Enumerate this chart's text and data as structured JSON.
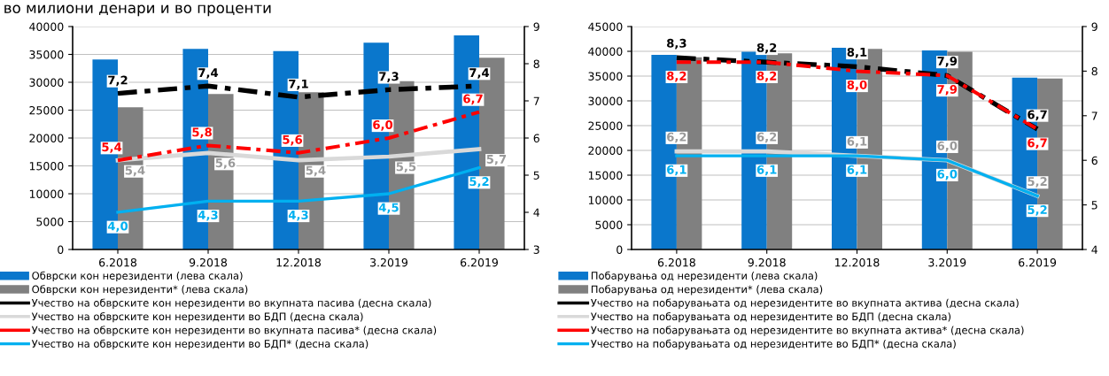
{
  "chart_data": [
    {
      "type": "bar",
      "title": "во милиони денари и во проценти",
      "categories": [
        "6.2018",
        "9.2018",
        "12.2018",
        "3.2019",
        "6.2019"
      ],
      "ylim": [
        0,
        40000
      ],
      "yticks": [
        0,
        5000,
        10000,
        15000,
        20000,
        25000,
        30000,
        35000,
        40000
      ],
      "y2lim": [
        3,
        9
      ],
      "y2ticks": [
        3,
        4,
        5,
        6,
        7,
        8,
        9
      ],
      "grid": "y",
      "legend": "bottom",
      "series": [
        {
          "name": "Обврски кон нерезиденти (лева скала)",
          "color": "#0a77cc",
          "values": [
            34100,
            36000,
            35600,
            37100,
            38400
          ]
        },
        {
          "name": "Обврски кон нерезиденти* (лева скала)",
          "color": "#808080",
          "values": [
            25500,
            27900,
            28200,
            30200,
            34400
          ]
        },
        {
          "name": "Учество на обврските кон нерезиденти во вкупната пасива (десна скала)",
          "type": "line",
          "axis": "y2",
          "color": "#000000",
          "line_style": "dashed",
          "values": [
            7.2,
            7.4,
            7.1,
            7.3,
            7.4
          ],
          "value_labels": [
            "7,2",
            "7,4",
            "7,1",
            "7,3",
            "7,4"
          ]
        },
        {
          "name": "Учество на обврските кон нерезиденти во БДП (десна скала)",
          "type": "line",
          "axis": "y2",
          "color": "#d9d9d9",
          "line_style": "solid",
          "values": [
            5.4,
            5.6,
            5.4,
            5.5,
            5.7
          ],
          "value_labels": [
            "5,4",
            "5,6",
            "5,4",
            "5,5",
            "5,7"
          ]
        },
        {
          "name": "Учество на обврските кон нерезиденти во вкупната пасива* (десна скала)",
          "type": "line",
          "axis": "y2",
          "color": "#ff0000",
          "line_style": "dashed",
          "values": [
            5.4,
            5.8,
            5.6,
            6.0,
            6.7
          ],
          "value_labels": [
            "5,4",
            "5,8",
            "5,6",
            "6,0",
            "6,7"
          ]
        },
        {
          "name": "Учество на обврските кон нерезиденти во БДП* (десна скала)",
          "type": "line",
          "axis": "y2",
          "color": "#00b0f0",
          "line_style": "solid",
          "values": [
            4.0,
            4.3,
            4.3,
            4.5,
            5.2
          ],
          "value_labels": [
            "4,0",
            "4,3",
            "4,3",
            "4,5",
            "5,2"
          ]
        }
      ]
    },
    {
      "type": "bar",
      "categories": [
        "6.2018",
        "9.2018",
        "12.2018",
        "3.2019",
        "6.2019"
      ],
      "ylim": [
        0,
        45000
      ],
      "yticks": [
        0,
        5000,
        10000,
        15000,
        20000,
        25000,
        30000,
        35000,
        40000,
        45000
      ],
      "y2lim": [
        4,
        9
      ],
      "y2ticks": [
        4,
        5,
        6,
        7,
        8,
        9
      ],
      "grid": "y",
      "legend": "bottom",
      "series": [
        {
          "name": "Побарувања од нерезиденти (лева скала)",
          "color": "#0a77cc",
          "values": [
            39300,
            39900,
            40700,
            40200,
            34700
          ]
        },
        {
          "name": "Побарувања од нерезиденти* (лева скала)",
          "color": "#808080",
          "values": [
            38800,
            39600,
            40500,
            39900,
            34500
          ]
        },
        {
          "name": "Учество на побарувањата од нерезидентите во вкупната актива (десна скала)",
          "type": "line",
          "axis": "y2",
          "color": "#000000",
          "line_style": "dashed",
          "values": [
            8.3,
            8.2,
            8.1,
            7.9,
            6.7
          ],
          "value_labels": [
            "8,3",
            "8,2",
            "8,1",
            "7,9",
            "6,7"
          ]
        },
        {
          "name": "Учество на побарувањата од нерезидентите во БДП (десна скала)",
          "type": "line",
          "axis": "y2",
          "color": "#d9d9d9",
          "line_style": "solid",
          "values": [
            6.2,
            6.2,
            6.1,
            6.0,
            5.2
          ],
          "value_labels": [
            "6,2",
            "6,2",
            "6,1",
            "6,0",
            "5,2"
          ]
        },
        {
          "name": "Учество на побарувањата од нерезидентите во вкупната актива* (десна скала)",
          "type": "line",
          "axis": "y2",
          "color": "#ff0000",
          "line_style": "dashed",
          "values": [
            8.2,
            8.2,
            8.0,
            7.9,
            6.7
          ],
          "value_labels": [
            "8,2",
            "8,2",
            "8,0",
            "7,9",
            "6,7"
          ]
        },
        {
          "name": "Учество на побарувањата од нерезидентите во БДП* (десна скала)",
          "type": "line",
          "axis": "y2",
          "color": "#00b0f0",
          "line_style": "solid",
          "values": [
            6.1,
            6.1,
            6.1,
            6.0,
            5.2
          ],
          "value_labels": [
            "6,1",
            "6,1",
            "6,1",
            "6,0",
            "5,2"
          ]
        }
      ]
    }
  ]
}
